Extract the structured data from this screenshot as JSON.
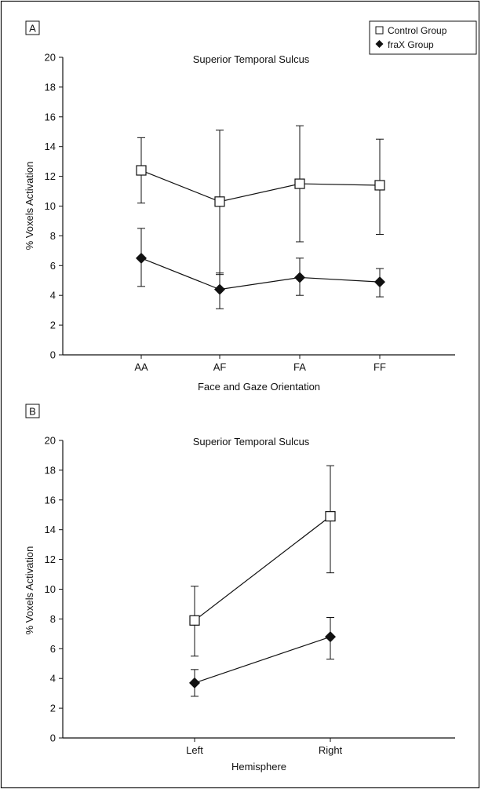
{
  "chart_data": [
    {
      "panel_label": "A",
      "type": "line",
      "title": "Superior Temporal Sulcus",
      "xlabel": "Face and Gaze Orientation",
      "ylabel": "% Voxels Activation",
      "ylim": [
        0,
        20
      ],
      "yticks": [
        "0",
        "2",
        "4",
        "6",
        "8",
        "10",
        "12",
        "14",
        "16",
        "18",
        "20"
      ],
      "categories": [
        "AA",
        "AF",
        "FA",
        "FF"
      ],
      "legend": {
        "placement": "top-right",
        "entries": [
          "Control Group",
          "fraX Group"
        ]
      },
      "series": [
        {
          "name": "Control Group",
          "marker": "open-square",
          "values": [
            12.4,
            10.3,
            11.5,
            11.4
          ],
          "err_low": [
            10.2,
            5.4,
            7.6,
            8.1
          ],
          "err_high": [
            14.6,
            15.1,
            15.4,
            14.5
          ]
        },
        {
          "name": "fraX Group",
          "marker": "filled-diamond",
          "values": [
            6.5,
            4.4,
            5.2,
            4.9
          ],
          "err_low": [
            4.6,
            3.1,
            4.0,
            3.9
          ],
          "err_high": [
            8.5,
            5.5,
            6.5,
            5.8
          ]
        }
      ]
    },
    {
      "panel_label": "B",
      "type": "line",
      "title": "Superior Temporal Sulcus",
      "xlabel": "Hemisphere",
      "ylabel": "% Voxels Activation",
      "ylim": [
        0,
        20
      ],
      "yticks": [
        "0",
        "2",
        "4",
        "6",
        "8",
        "10",
        "12",
        "14",
        "16",
        "18",
        "20"
      ],
      "categories": [
        "Left",
        "Right"
      ],
      "series": [
        {
          "name": "Control Group",
          "marker": "open-square",
          "values": [
            7.9,
            14.9
          ],
          "err_low": [
            5.5,
            11.1
          ],
          "err_high": [
            10.2,
            18.3
          ]
        },
        {
          "name": "fraX Group",
          "marker": "filled-diamond",
          "values": [
            3.7,
            6.8
          ],
          "err_low": [
            2.8,
            5.3
          ],
          "err_high": [
            4.6,
            8.1
          ]
        }
      ]
    }
  ]
}
